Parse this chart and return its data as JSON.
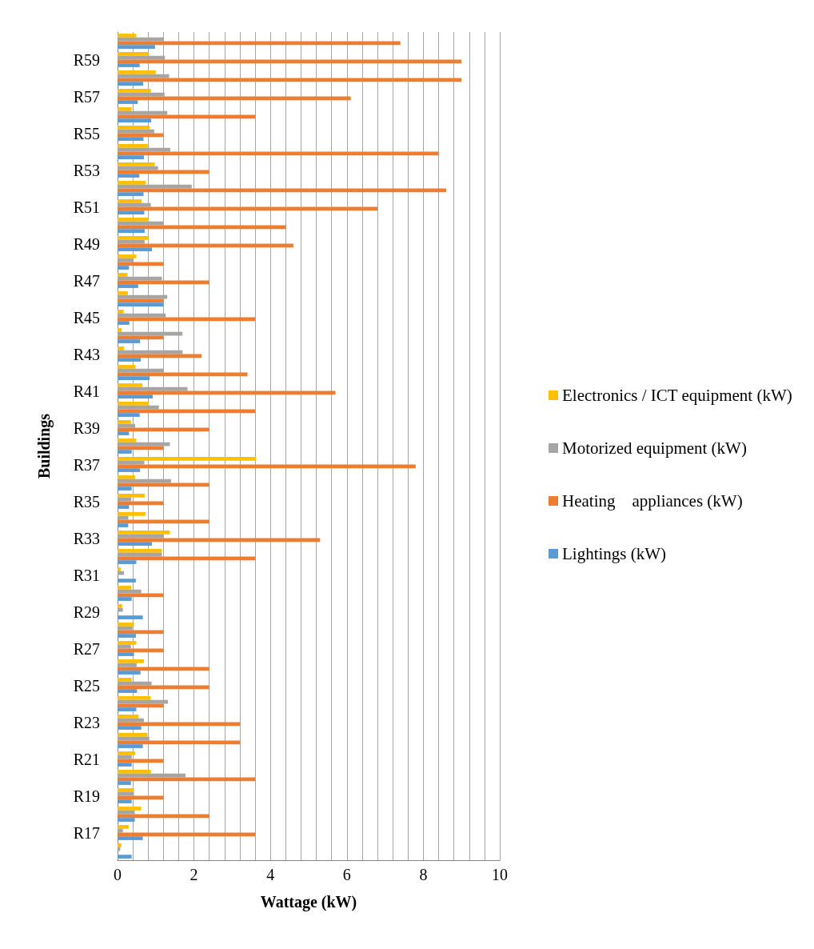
{
  "chart_data": {
    "type": "bar",
    "orientation": "horizontal",
    "xlabel": "Wattage (kW)",
    "ylabel": "Buildings",
    "categories": [
      null,
      "R59",
      null,
      "R57",
      null,
      "R55",
      null,
      "R53",
      null,
      "R51",
      null,
      "R49",
      null,
      "R47",
      null,
      "R45",
      null,
      "R43",
      null,
      "R41",
      null,
      "R39",
      null,
      "R37",
      null,
      "R35",
      null,
      "R33",
      null,
      "R31",
      null,
      "R29",
      null,
      "R27",
      null,
      "R25",
      null,
      "R23",
      null,
      "R21",
      null,
      "R19",
      null,
      "R17",
      null
    ],
    "series": [
      {
        "name": "Electronics / ICT equipment (kW)",
        "color": "#ffc000",
        "values": [
          0.49,
          0.81,
          1.0,
          0.87,
          0.37,
          0.84,
          0.79,
          0.97,
          0.74,
          0.63,
          0.81,
          0.81,
          0.49,
          0.26,
          0.27,
          0.16,
          0.11,
          0.17,
          0.47,
          0.65,
          0.82,
          0.35,
          0.49,
          3.63,
          0.46,
          0.71,
          0.73,
          1.37,
          1.16,
          0.08,
          0.36,
          0.12,
          0.43,
          0.49,
          0.69,
          0.37,
          0.87,
          0.55,
          0.78,
          0.46,
          0.87,
          0.43,
          0.62,
          0.29,
          0.1
        ]
      },
      {
        "name": "Motorized equipment (kW)",
        "color": "#a5a5a5",
        "values": [
          1.2,
          1.24,
          1.35,
          1.23,
          1.3,
          0.96,
          1.38,
          1.06,
          1.94,
          0.87,
          1.2,
          0.71,
          0.41,
          1.16,
          1.3,
          1.26,
          1.7,
          1.7,
          1.21,
          1.83,
          1.08,
          0.46,
          1.37,
          0.7,
          1.4,
          0.36,
          0.28,
          1.2,
          1.16,
          0.17,
          0.62,
          0.14,
          0.39,
          0.35,
          0.5,
          0.89,
          1.32,
          0.69,
          0.83,
          0.37,
          1.78,
          0.43,
          0.45,
          0.14,
          0.07
        ]
      },
      {
        "name": "Heating    appliances (kW)",
        "color": "#ed7d31",
        "values": [
          7.4,
          9.0,
          9.0,
          6.1,
          3.6,
          1.2,
          8.4,
          2.4,
          8.6,
          6.8,
          4.4,
          4.6,
          1.2,
          2.4,
          1.2,
          3.6,
          1.2,
          2.2,
          3.4,
          5.7,
          3.6,
          2.4,
          1.2,
          7.8,
          2.4,
          1.2,
          2.4,
          5.3,
          3.6,
          null,
          1.2,
          null,
          1.2,
          1.2,
          2.4,
          2.4,
          1.2,
          3.2,
          3.2,
          1.2,
          3.6,
          1.2,
          2.4,
          3.6,
          null
        ]
      },
      {
        "name": "Lightings (kW)",
        "color": "#5b9bd5",
        "values": [
          0.98,
          0.58,
          0.67,
          0.53,
          0.88,
          0.68,
          0.69,
          0.57,
          0.68,
          0.7,
          0.71,
          0.9,
          0.3,
          0.54,
          1.2,
          0.31,
          0.59,
          0.61,
          0.84,
          0.92,
          0.58,
          0.3,
          0.37,
          0.59,
          0.37,
          0.3,
          0.28,
          0.9,
          0.49,
          0.48,
          0.37,
          0.66,
          0.48,
          0.43,
          0.6,
          0.51,
          0.49,
          0.62,
          0.66,
          0.37,
          0.35,
          0.37,
          0.45,
          0.66,
          0.37
        ]
      }
    ],
    "xlim": [
      0,
      10
    ],
    "xticks": [
      0,
      {
        "value": 0.4,
        "label": null
      },
      {
        "value": 0.8,
        "label": null
      },
      {
        "value": 1.2,
        "label": null
      },
      {
        "value": 1.6,
        "label": null
      },
      2,
      {
        "value": 2.4,
        "label": null
      },
      {
        "value": 2.8,
        "label": null
      },
      {
        "value": 3.2,
        "label": null
      },
      {
        "value": 3.6,
        "label": null
      },
      4,
      {
        "value": 4.4,
        "label": null
      },
      {
        "value": 4.8,
        "label": null
      },
      {
        "value": 5.2,
        "label": null
      },
      {
        "value": 5.6,
        "label": null
      },
      6,
      {
        "value": 6.4,
        "label": null
      },
      {
        "value": 6.8,
        "label": null
      },
      {
        "value": 7.2,
        "label": null
      },
      {
        "value": 7.6,
        "label": null
      },
      8,
      {
        "value": 8.4,
        "label": null
      },
      {
        "value": 8.8,
        "label": null
      },
      {
        "value": 9.2,
        "label": null
      },
      {
        "value": 9.6,
        "label": null
      },
      10
    ],
    "grid": true,
    "legend": "right"
  }
}
